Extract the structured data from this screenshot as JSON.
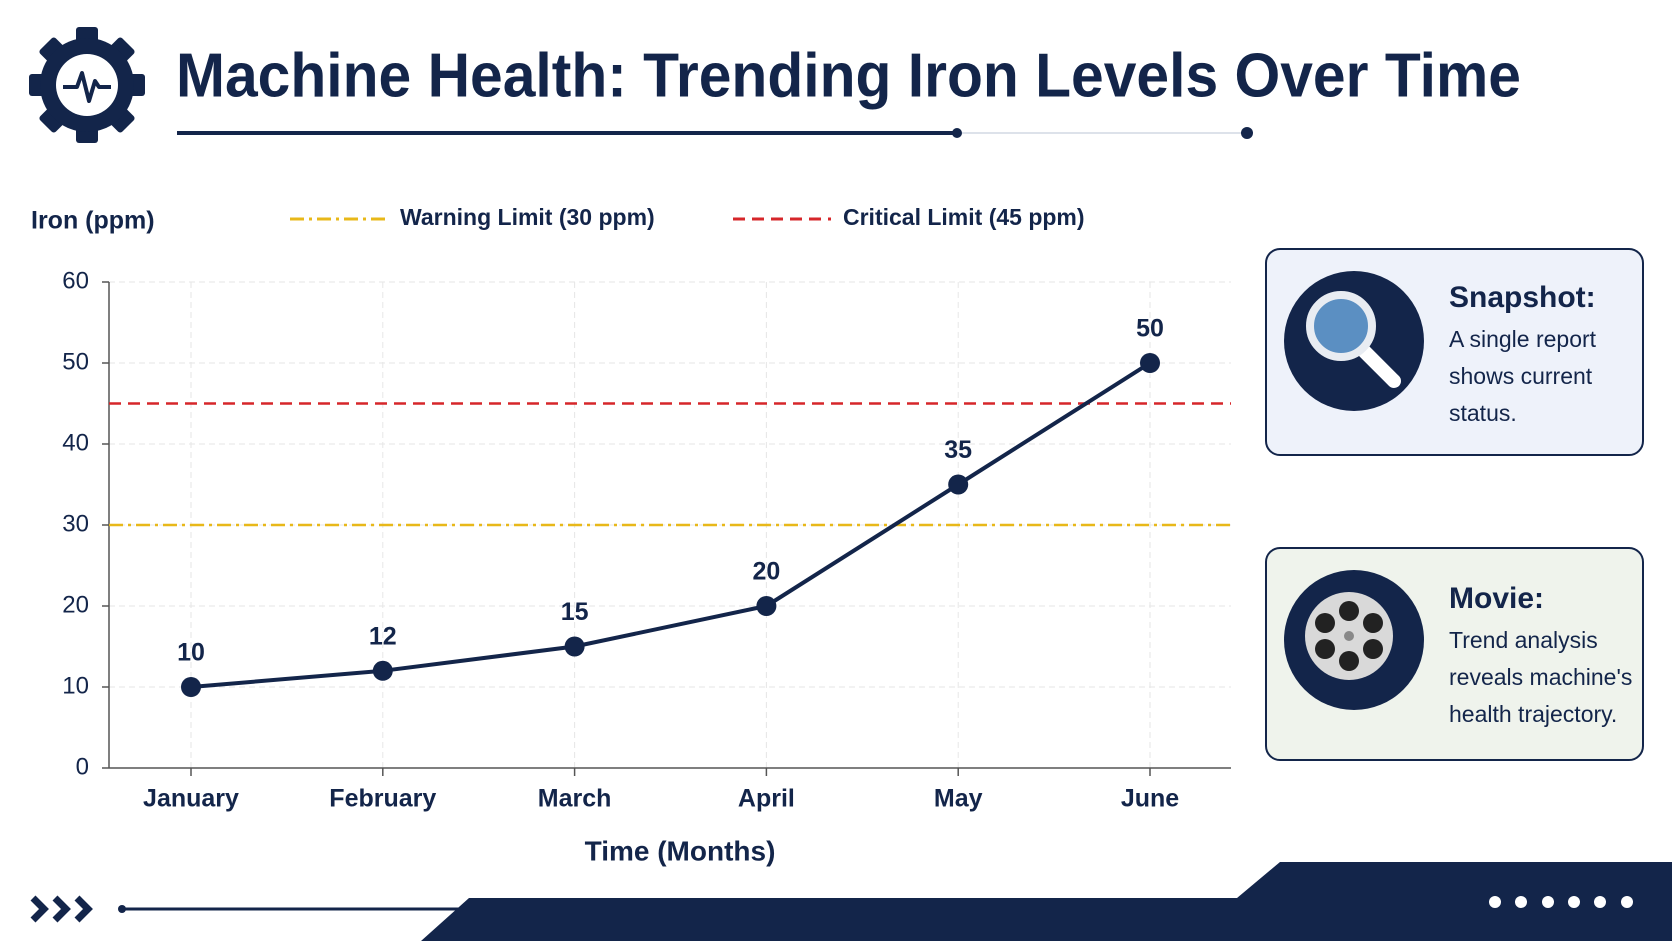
{
  "title": "Machine Health: Trending Iron Levels Over Time",
  "chart_data": {
    "type": "line",
    "y_label": "Iron (ppm)",
    "x_label": "Time (Months)",
    "categories": [
      "January",
      "February",
      "March",
      "April",
      "May",
      "June"
    ],
    "series": [
      {
        "name": "Iron",
        "color": "#13254a",
        "values": [
          10,
          12,
          15,
          20,
          35,
          50
        ]
      }
    ],
    "ylim": [
      0,
      60
    ],
    "yticks": [
      0,
      10,
      20,
      30,
      40,
      50,
      60
    ],
    "grid": true,
    "reference_lines": [
      {
        "name": "Warning Limit (30 ppm)",
        "value": 30,
        "color": "#e8b819"
      },
      {
        "name": "Critical Limit (45 ppm)",
        "value": 45,
        "color": "#d6262a"
      }
    ]
  },
  "panels": [
    {
      "title": "Snapshot:",
      "lines": [
        "A single report",
        "shows current",
        "status."
      ]
    },
    {
      "title": "Movie:",
      "lines": [
        "Trend analysis",
        "reveals machine's",
        "health trajectory."
      ]
    }
  ]
}
